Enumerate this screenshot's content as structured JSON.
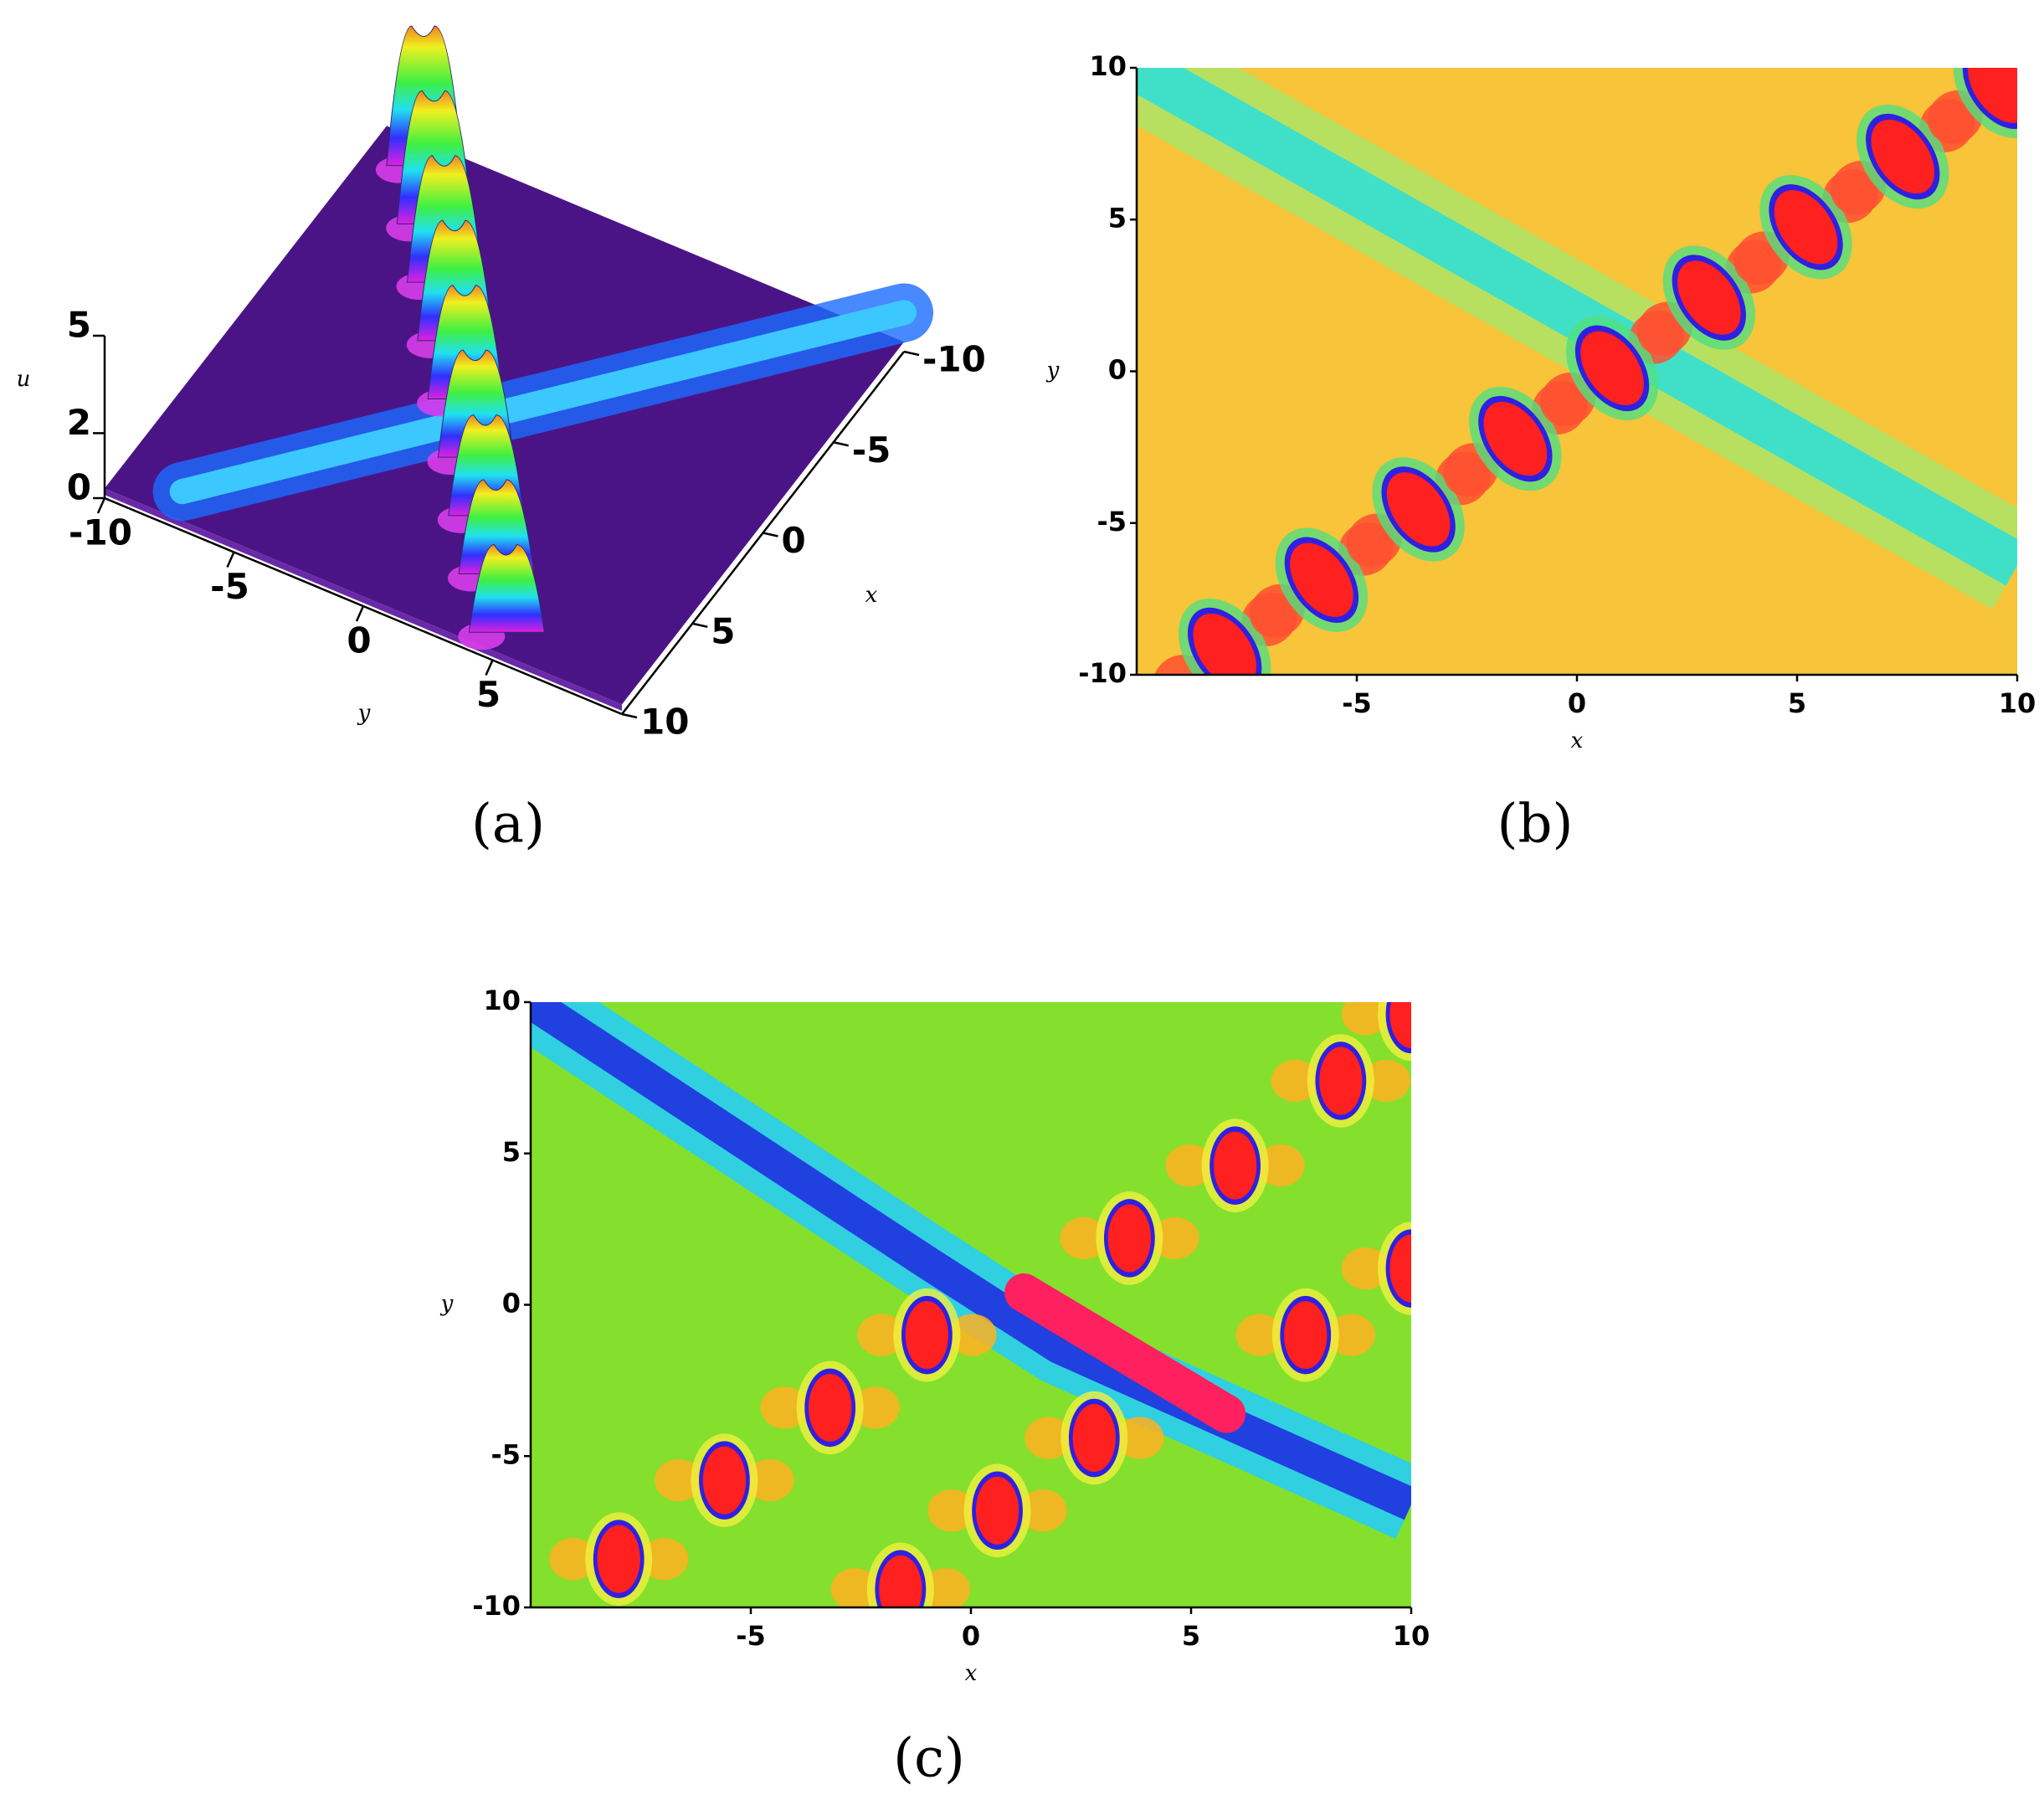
{
  "chart_data": [
    {
      "type": "surface",
      "panel_label": "(a)",
      "xlabel": "x",
      "ylabel": "y",
      "zlabel": "u",
      "xlim": [
        -10,
        10
      ],
      "ylim": [
        -10,
        10
      ],
      "zlim": [
        0,
        5
      ],
      "xticks": [
        -10,
        -5,
        0,
        5,
        10
      ],
      "yticks": [
        -10,
        -5,
        0,
        5
      ],
      "zticks": [
        0,
        2,
        5
      ]
    },
    {
      "type": "density",
      "panel_label": "(b)",
      "xlabel": "x",
      "ylabel": "y",
      "xlim": [
        -10,
        10
      ],
      "ylim": [
        -10,
        10
      ],
      "xticks": [
        -5,
        0,
        5,
        10
      ],
      "yticks": [
        -10,
        -5,
        0,
        5,
        10
      ],
      "theme": "orange"
    },
    {
      "type": "density",
      "panel_label": "(c)",
      "xlabel": "x",
      "ylabel": "y",
      "xlim": [
        -10,
        10
      ],
      "ylim": [
        -10,
        10
      ],
      "xticks": [
        -5,
        0,
        5,
        10
      ],
      "yticks": [
        -10,
        -5,
        0,
        5,
        10
      ],
      "theme": "green"
    }
  ]
}
